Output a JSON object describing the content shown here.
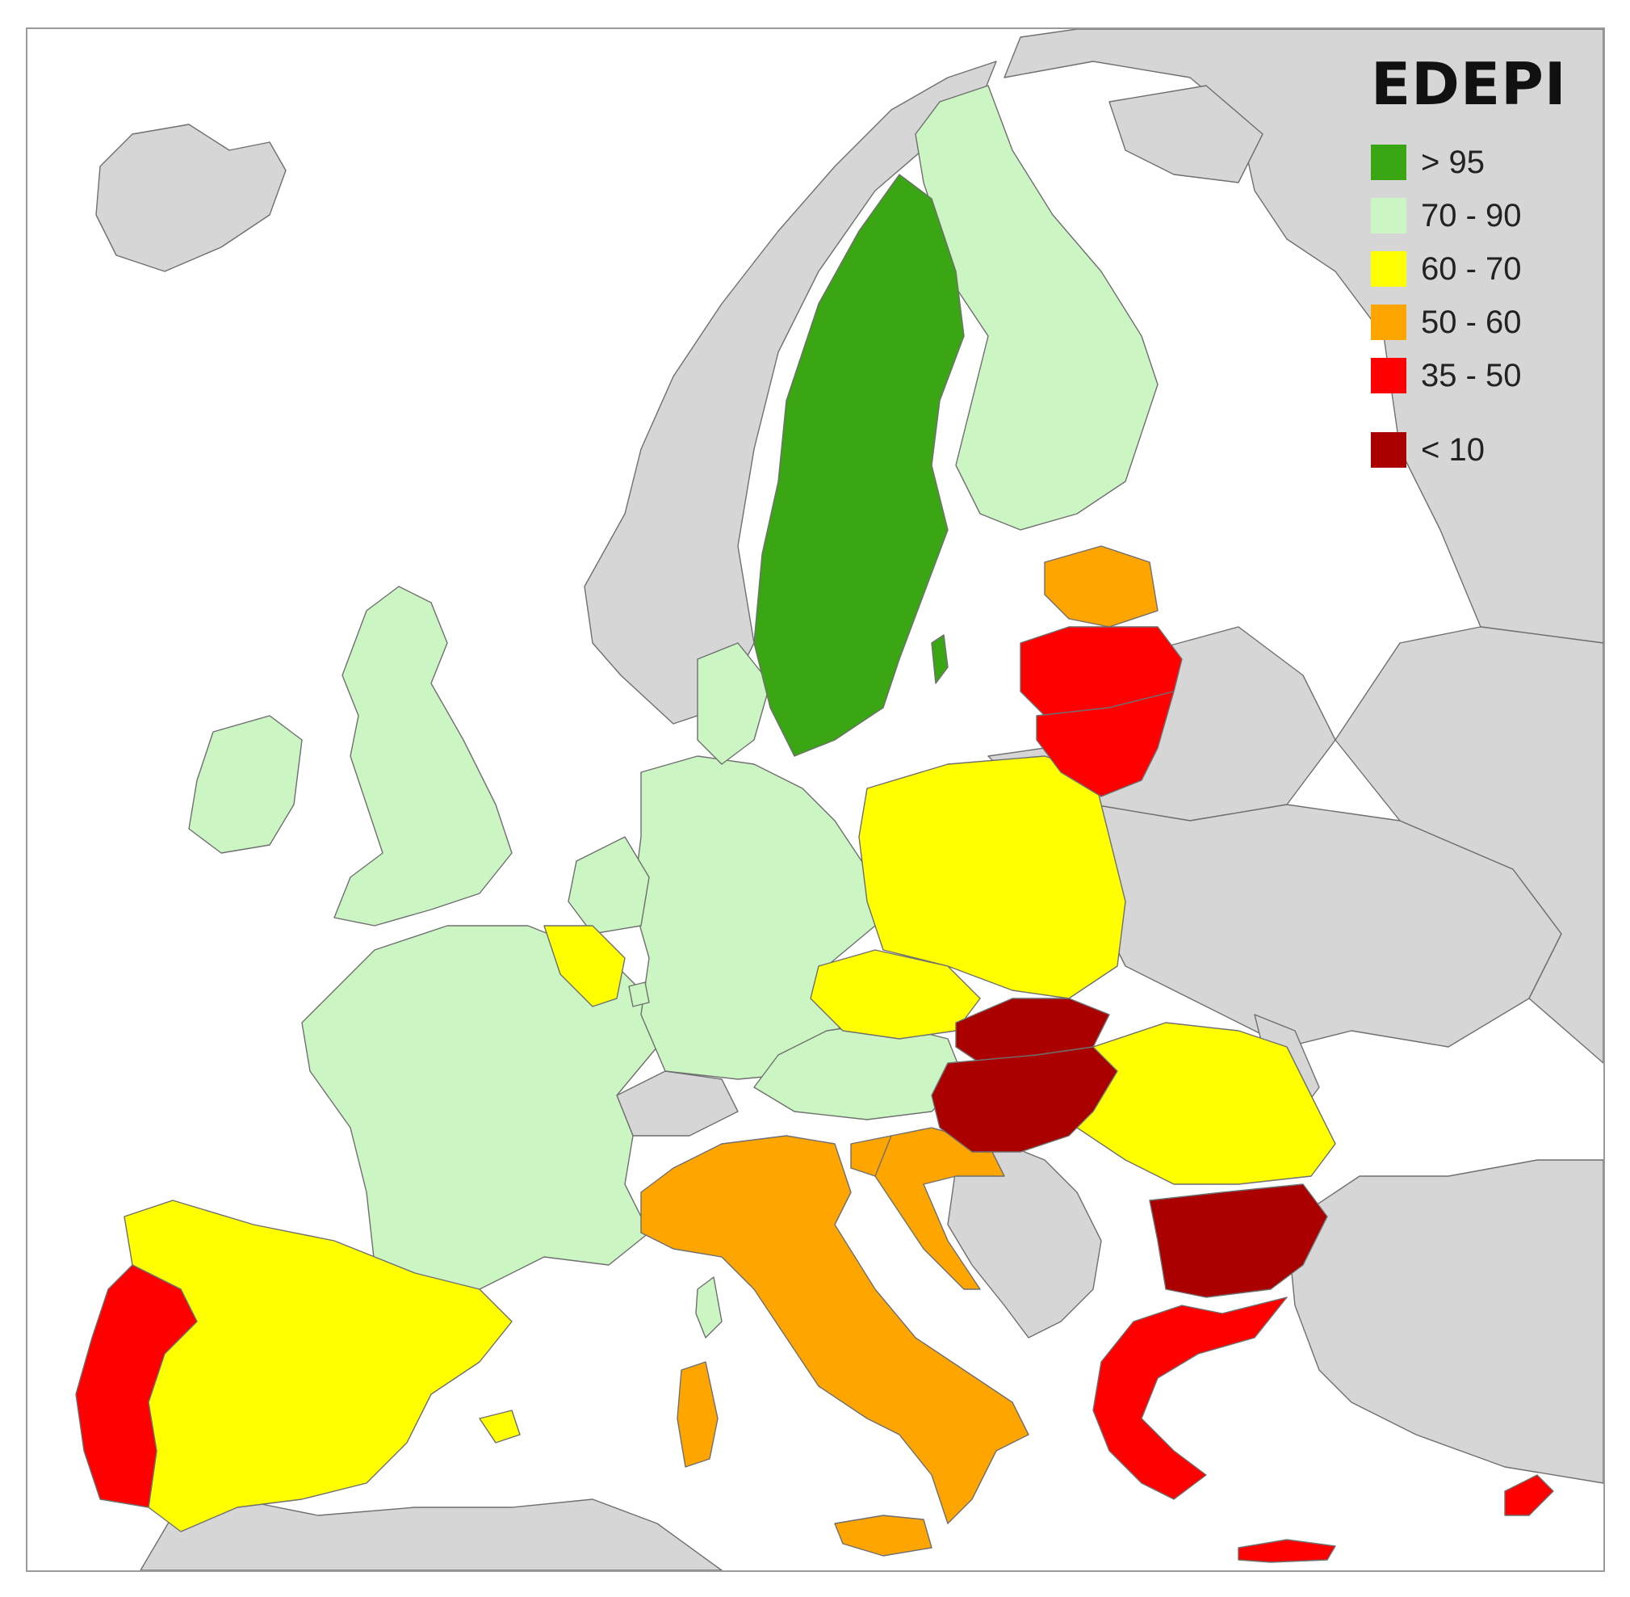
{
  "legend": {
    "title": "EDEPI",
    "items": [
      {
        "label": "> 95",
        "color": "#3aa614"
      },
      {
        "label": "70 - 90",
        "color": "#ccf5c4"
      },
      {
        "label": "60 - 70",
        "color": "#ffff00"
      },
      {
        "label": "50 - 60",
        "color": "#ffa500"
      },
      {
        "label": "35 - 50",
        "color": "#ff0000"
      },
      {
        "label": "< 10",
        "color": "#aa0000"
      }
    ]
  },
  "colors": {
    "sea": "#ffffff",
    "non_eu": "#d6d6d6",
    "border": "#6f6f6f"
  }
}
